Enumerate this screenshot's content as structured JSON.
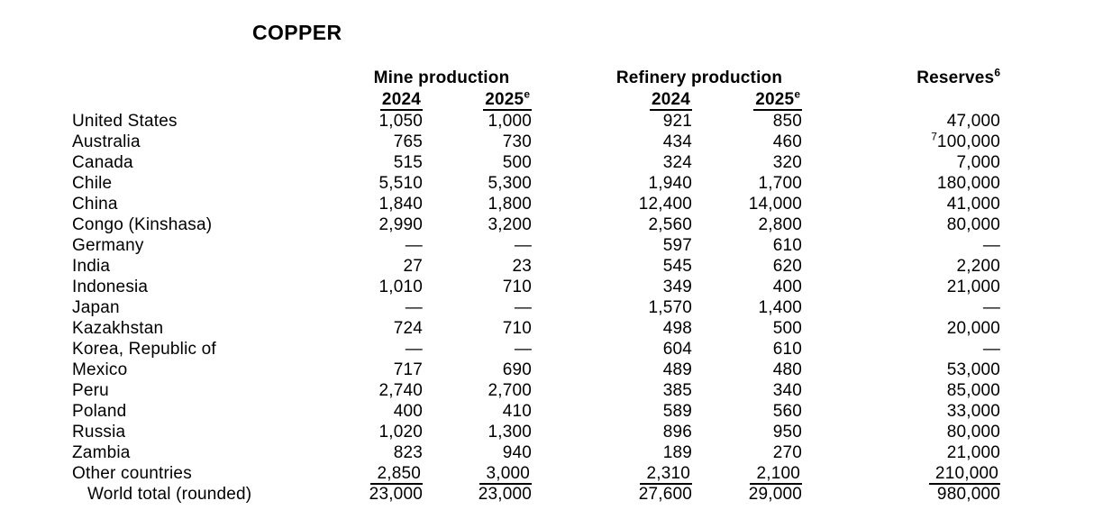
{
  "page": {
    "title": "COPPER"
  },
  "table": {
    "groups": {
      "mine": "Mine production",
      "refinery": "Refinery production",
      "reserves": "Reserves",
      "reserves_sup": "6"
    },
    "year_headers": {
      "mine_2024": "2024",
      "mine_2025": "2025",
      "mine_2025_sup": "e",
      "ref_2024": "2024",
      "ref_2025": "2025",
      "ref_2025_sup": "e"
    },
    "rows": [
      {
        "country": "United States",
        "mine_2024": "1,050",
        "mine_2025": "1,000",
        "ref_2024": "921",
        "ref_2025": "850",
        "reserves": "47,000"
      },
      {
        "country": "Australia",
        "mine_2024": "765",
        "mine_2025": "730",
        "ref_2024": "434",
        "ref_2025": "460",
        "reserves_sup": "7",
        "reserves": "100,000"
      },
      {
        "country": "Canada",
        "mine_2024": "515",
        "mine_2025": "500",
        "ref_2024": "324",
        "ref_2025": "320",
        "reserves": "7,000"
      },
      {
        "country": "Chile",
        "mine_2024": "5,510",
        "mine_2025": "5,300",
        "ref_2024": "1,940",
        "ref_2025": "1,700",
        "reserves": "180,000"
      },
      {
        "country": "China",
        "mine_2024": "1,840",
        "mine_2025": "1,800",
        "ref_2024": "12,400",
        "ref_2025": "14,000",
        "reserves": "41,000"
      },
      {
        "country": "Congo (Kinshasa)",
        "mine_2024": "2,990",
        "mine_2025": "3,200",
        "ref_2024": "2,560",
        "ref_2025": "2,800",
        "reserves": "80,000"
      },
      {
        "country": "Germany",
        "mine_2024": "—",
        "mine_2025": "—",
        "ref_2024": "597",
        "ref_2025": "610",
        "reserves": "—"
      },
      {
        "country": "India",
        "mine_2024": "27",
        "mine_2025": "23",
        "ref_2024": "545",
        "ref_2025": "620",
        "reserves": "2,200"
      },
      {
        "country": "Indonesia",
        "mine_2024": "1,010",
        "mine_2025": "710",
        "ref_2024": "349",
        "ref_2025": "400",
        "reserves": "21,000"
      },
      {
        "country": "Japan",
        "mine_2024": "—",
        "mine_2025": "—",
        "ref_2024": "1,570",
        "ref_2025": "1,400",
        "reserves": "—"
      },
      {
        "country": "Kazakhstan",
        "mine_2024": "724",
        "mine_2025": "710",
        "ref_2024": "498",
        "ref_2025": "500",
        "reserves": "20,000"
      },
      {
        "country": "Korea, Republic of",
        "mine_2024": "—",
        "mine_2025": "—",
        "ref_2024": "604",
        "ref_2025": "610",
        "reserves": "—"
      },
      {
        "country": "Mexico",
        "mine_2024": "717",
        "mine_2025": "690",
        "ref_2024": "489",
        "ref_2025": "480",
        "reserves": "53,000"
      },
      {
        "country": "Peru",
        "mine_2024": "2,740",
        "mine_2025": "2,700",
        "ref_2024": "385",
        "ref_2025": "340",
        "reserves": "85,000"
      },
      {
        "country": "Poland",
        "mine_2024": "400",
        "mine_2025": "410",
        "ref_2024": "589",
        "ref_2025": "560",
        "reserves": "33,000"
      },
      {
        "country": "Russia",
        "mine_2024": "1,020",
        "mine_2025": "1,300",
        "ref_2024": "896",
        "ref_2025": "950",
        "reserves": "80,000"
      },
      {
        "country": "Zambia",
        "mine_2024": "823",
        "mine_2025": "940",
        "ref_2024": "189",
        "ref_2025": "270",
        "reserves": "21,000"
      },
      {
        "country": "Other countries",
        "mine_2024": "2,850",
        "mine_2025": "3,000",
        "ref_2024": "2,310",
        "ref_2025": "2,100",
        "reserves": "210,000"
      }
    ],
    "total": {
      "label": "World total (rounded)",
      "mine_2024": "23,000",
      "mine_2025": "23,000",
      "ref_2024": "27,600",
      "ref_2025": "29,000",
      "reserves": "980,000"
    }
  }
}
